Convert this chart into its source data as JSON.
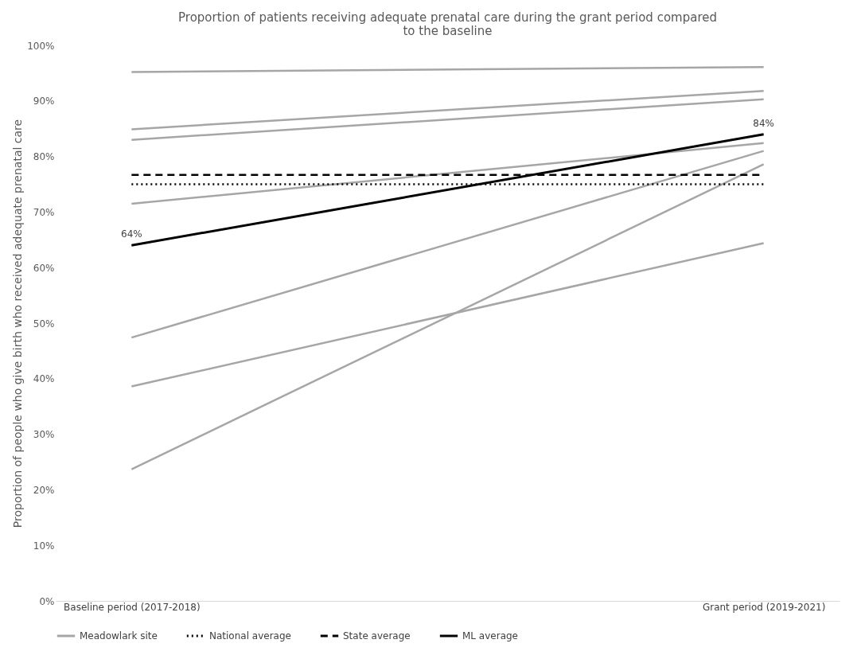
{
  "chart_data": {
    "type": "line",
    "title": "Proportion of patients receiving adequate prenatal care during the grant period compared to the baseline",
    "ylabel": "Proportion of people who give birth who received adequate prenatal care",
    "categories": [
      "Baseline period (2017-2018)",
      "Grant period (2019-2021)"
    ],
    "series": [
      {
        "name": "Meadowlark site",
        "color": "#a6a6a6",
        "values": [
          95.2,
          96.1
        ]
      },
      {
        "color": "#a6a6a6",
        "values": [
          84.9,
          91.8
        ]
      },
      {
        "color": "#a6a6a6",
        "values": [
          83.0,
          90.3
        ]
      },
      {
        "color": "#a6a6a6",
        "values": [
          71.5,
          82.4
        ]
      },
      {
        "color": "#a6a6a6",
        "values": [
          47.4,
          81.0
        ]
      },
      {
        "color": "#a6a6a6",
        "values": [
          38.6,
          64.4
        ]
      },
      {
        "color": "#a6a6a6",
        "values": [
          23.7,
          78.6
        ]
      },
      {
        "name": "National average",
        "color": "#000000",
        "line_style": "dotted",
        "values": [
          75.0,
          75.0
        ]
      },
      {
        "name": "State average",
        "color": "#000000",
        "line_style": "dashed",
        "values": [
          76.7,
          76.7
        ]
      },
      {
        "name": "ML average",
        "color": "#000000",
        "values": [
          64,
          84
        ],
        "value_labels": [
          "64%",
          "84%"
        ]
      }
    ],
    "ylim": [
      0,
      100
    ],
    "yticks": [
      {
        "value": 0,
        "label": "0%"
      },
      {
        "value": 10,
        "label": "10%"
      },
      {
        "value": 20,
        "label": "20%"
      },
      {
        "value": 30,
        "label": "30%"
      },
      {
        "value": 40,
        "label": "40%"
      },
      {
        "value": 50,
        "label": "50%"
      },
      {
        "value": 60,
        "label": "60%"
      },
      {
        "value": 70,
        "label": "70%"
      },
      {
        "value": 80,
        "label": "80%"
      },
      {
        "value": 90,
        "label": "90%"
      },
      {
        "value": 100,
        "label": "100%"
      }
    ],
    "grid": false,
    "legend": "bottom",
    "line_style": "solid"
  }
}
